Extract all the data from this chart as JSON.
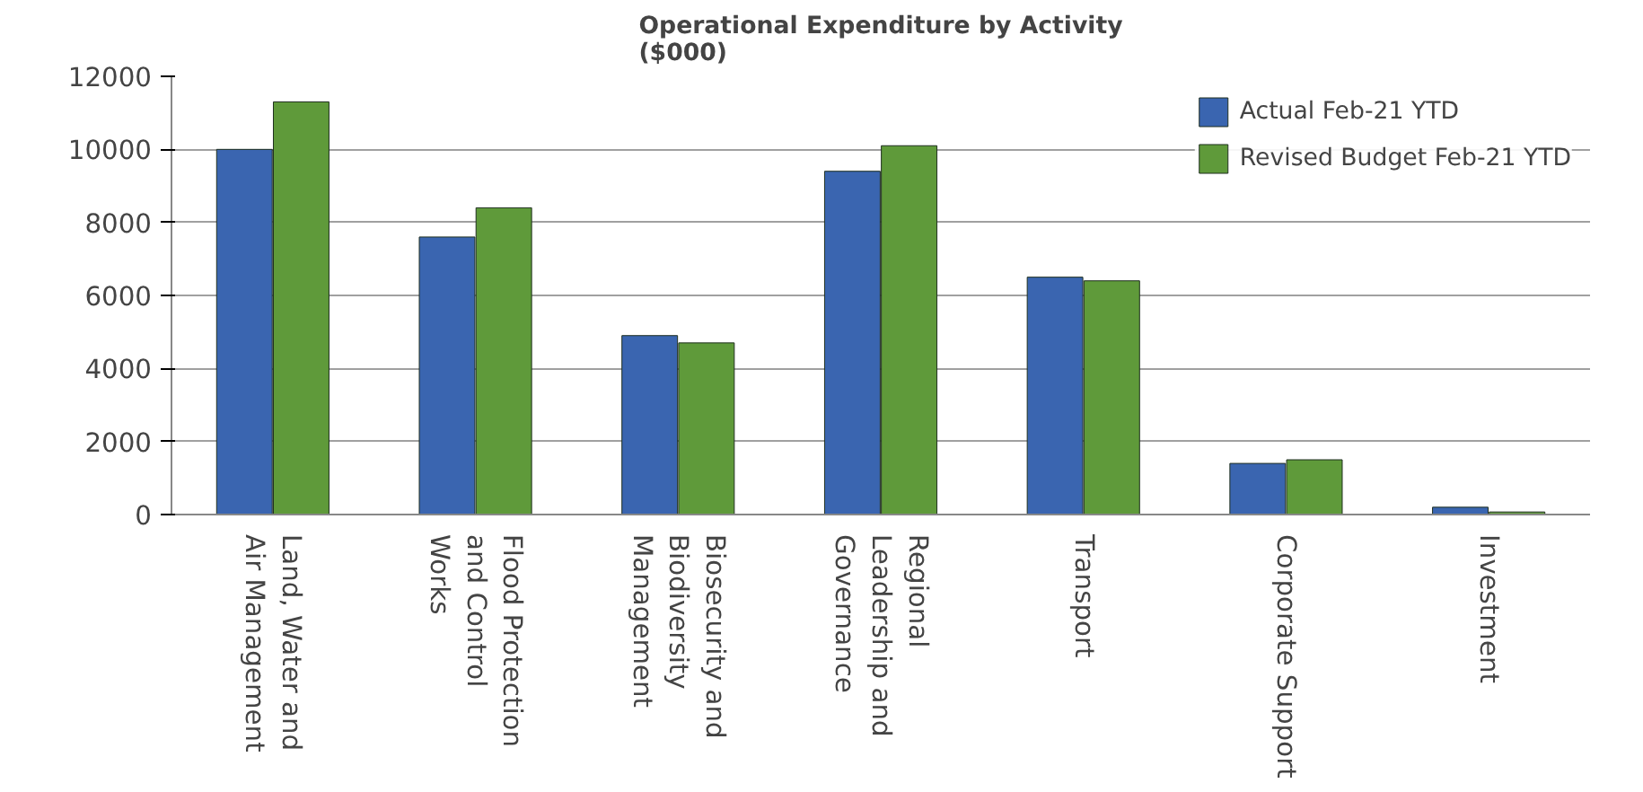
{
  "chart_data": {
    "type": "bar",
    "title": "Operational Expenditure by Activity\n($000)",
    "categories": [
      "Land, Water and\nAir Management",
      "Flood Protection\nand Control\nWorks",
      "Biosecurity and\nBiodiversity\nManagement",
      "Regional\nLeadership and\nGovernance",
      "Transport",
      "Corporate Support",
      "Investment"
    ],
    "series": [
      {
        "name": "Actual Feb-21 YTD",
        "color": "#3a65b0",
        "values": [
          10000,
          7600,
          4900,
          9400,
          6500,
          1400,
          200
        ]
      },
      {
        "name": "Revised Budget Feb-21 YTD",
        "color": "#5f9a3a",
        "values": [
          11300,
          8400,
          4700,
          10100,
          6400,
          1500,
          70
        ]
      }
    ],
    "ylim": [
      0,
      12000
    ],
    "yticks": [
      0,
      2000,
      4000,
      6000,
      8000,
      10000,
      12000
    ],
    "grid": "y",
    "legend": "top right"
  }
}
